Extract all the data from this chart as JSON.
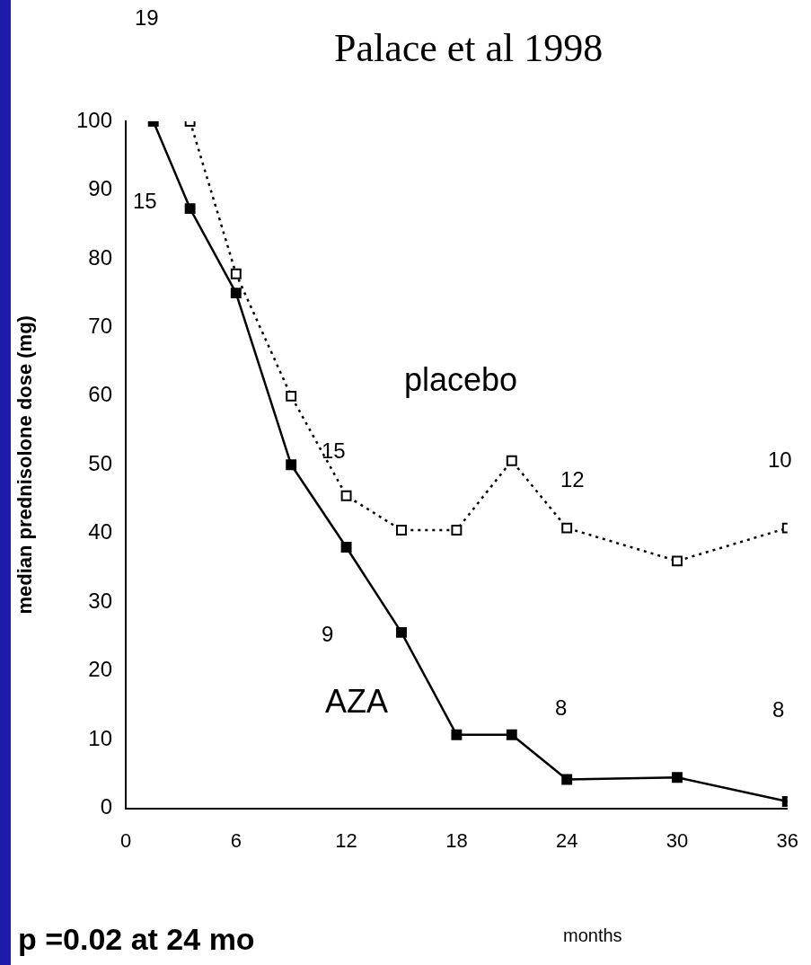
{
  "chart_data": {
    "type": "line",
    "title": "Palace et al 1998",
    "xlabel": "months",
    "ylabel": "median prednisolone dose (mg)",
    "xlim": [
      0,
      36
    ],
    "xticks": [
      0,
      6,
      12,
      18,
      24,
      30,
      36
    ],
    "ylim": [
      0,
      100
    ],
    "yticks": [
      0,
      10,
      20,
      30,
      40,
      50,
      60,
      70,
      80,
      90,
      100
    ],
    "grid": false,
    "legend": false,
    "marker": "square",
    "series": [
      {
        "name": "placebo",
        "color": "#000000",
        "line_style": "dotted",
        "x": [
          3.5,
          6,
          9,
          12,
          15,
          18,
          21,
          24,
          30,
          36
        ],
        "values": [
          100,
          77.8,
          60,
          45.5,
          40.5,
          40.5,
          50.6,
          40.8,
          36,
          40.8
        ]
      },
      {
        "name": "AZA",
        "color": "#000000",
        "line_style": "solid",
        "x": [
          1.5,
          3.5,
          6,
          9,
          12,
          15,
          18,
          21,
          24,
          30,
          36
        ],
        "values": [
          100,
          87.3,
          75,
          50,
          38,
          25.6,
          10.7,
          10.7,
          4.2,
          4.5,
          1
        ]
      }
    ],
    "annotations": [
      "19",
      "15",
      "15",
      "9",
      "12",
      "10",
      "8",
      "8",
      "p =0.02 at 24 mo"
    ]
  }
}
